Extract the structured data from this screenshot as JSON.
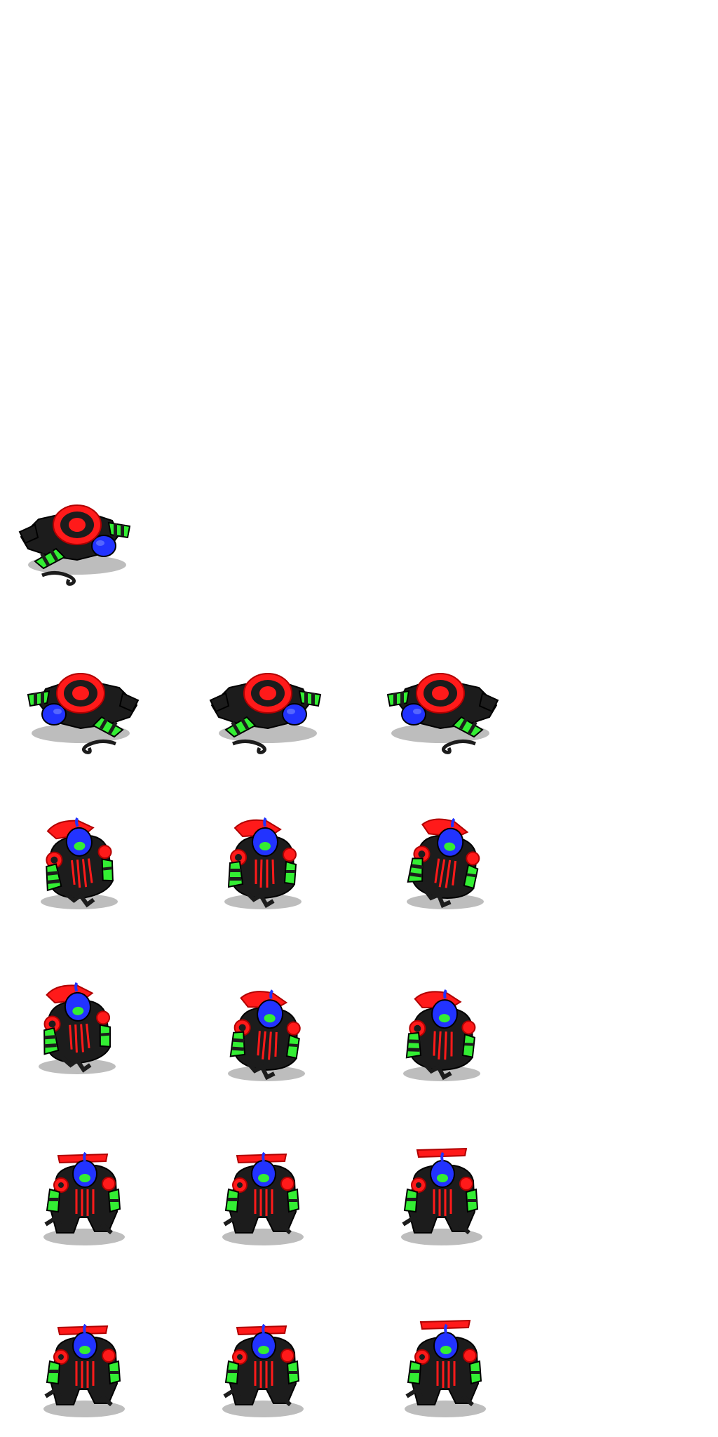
{
  "sprite_sheet": {
    "background": "#ffffff",
    "palette": {
      "body": "#1c1c1c",
      "body_edge": "#000000",
      "shadow": "#bdbdbd",
      "red": "#ff1a1a",
      "red_dark": "#b00000",
      "green": "#33ee33",
      "green_dark": "#159915",
      "blue": "#2233ff",
      "blue_light": "#5566ff"
    },
    "frames": [
      {
        "pose": "down",
        "variant": 0
      },
      {
        "pose": "down",
        "variant": 1
      },
      {
        "pose": "down",
        "variant": 2
      },
      {
        "pose": "down",
        "variant": 3
      },
      {
        "pose": "crouch",
        "variant": 0
      },
      {
        "pose": "crouch",
        "variant": 1
      },
      {
        "pose": "crouch",
        "variant": 2
      },
      {
        "pose": "crouch",
        "variant": 3
      },
      {
        "pose": "crouch",
        "variant": 4
      },
      {
        "pose": "crouch",
        "variant": 5
      },
      {
        "pose": "stand",
        "variant": 0
      },
      {
        "pose": "stand",
        "variant": 1
      },
      {
        "pose": "stand",
        "variant": 2
      },
      {
        "pose": "stand",
        "variant": 3
      },
      {
        "pose": "stand",
        "variant": 4
      },
      {
        "pose": "stand",
        "variant": 5
      }
    ]
  }
}
